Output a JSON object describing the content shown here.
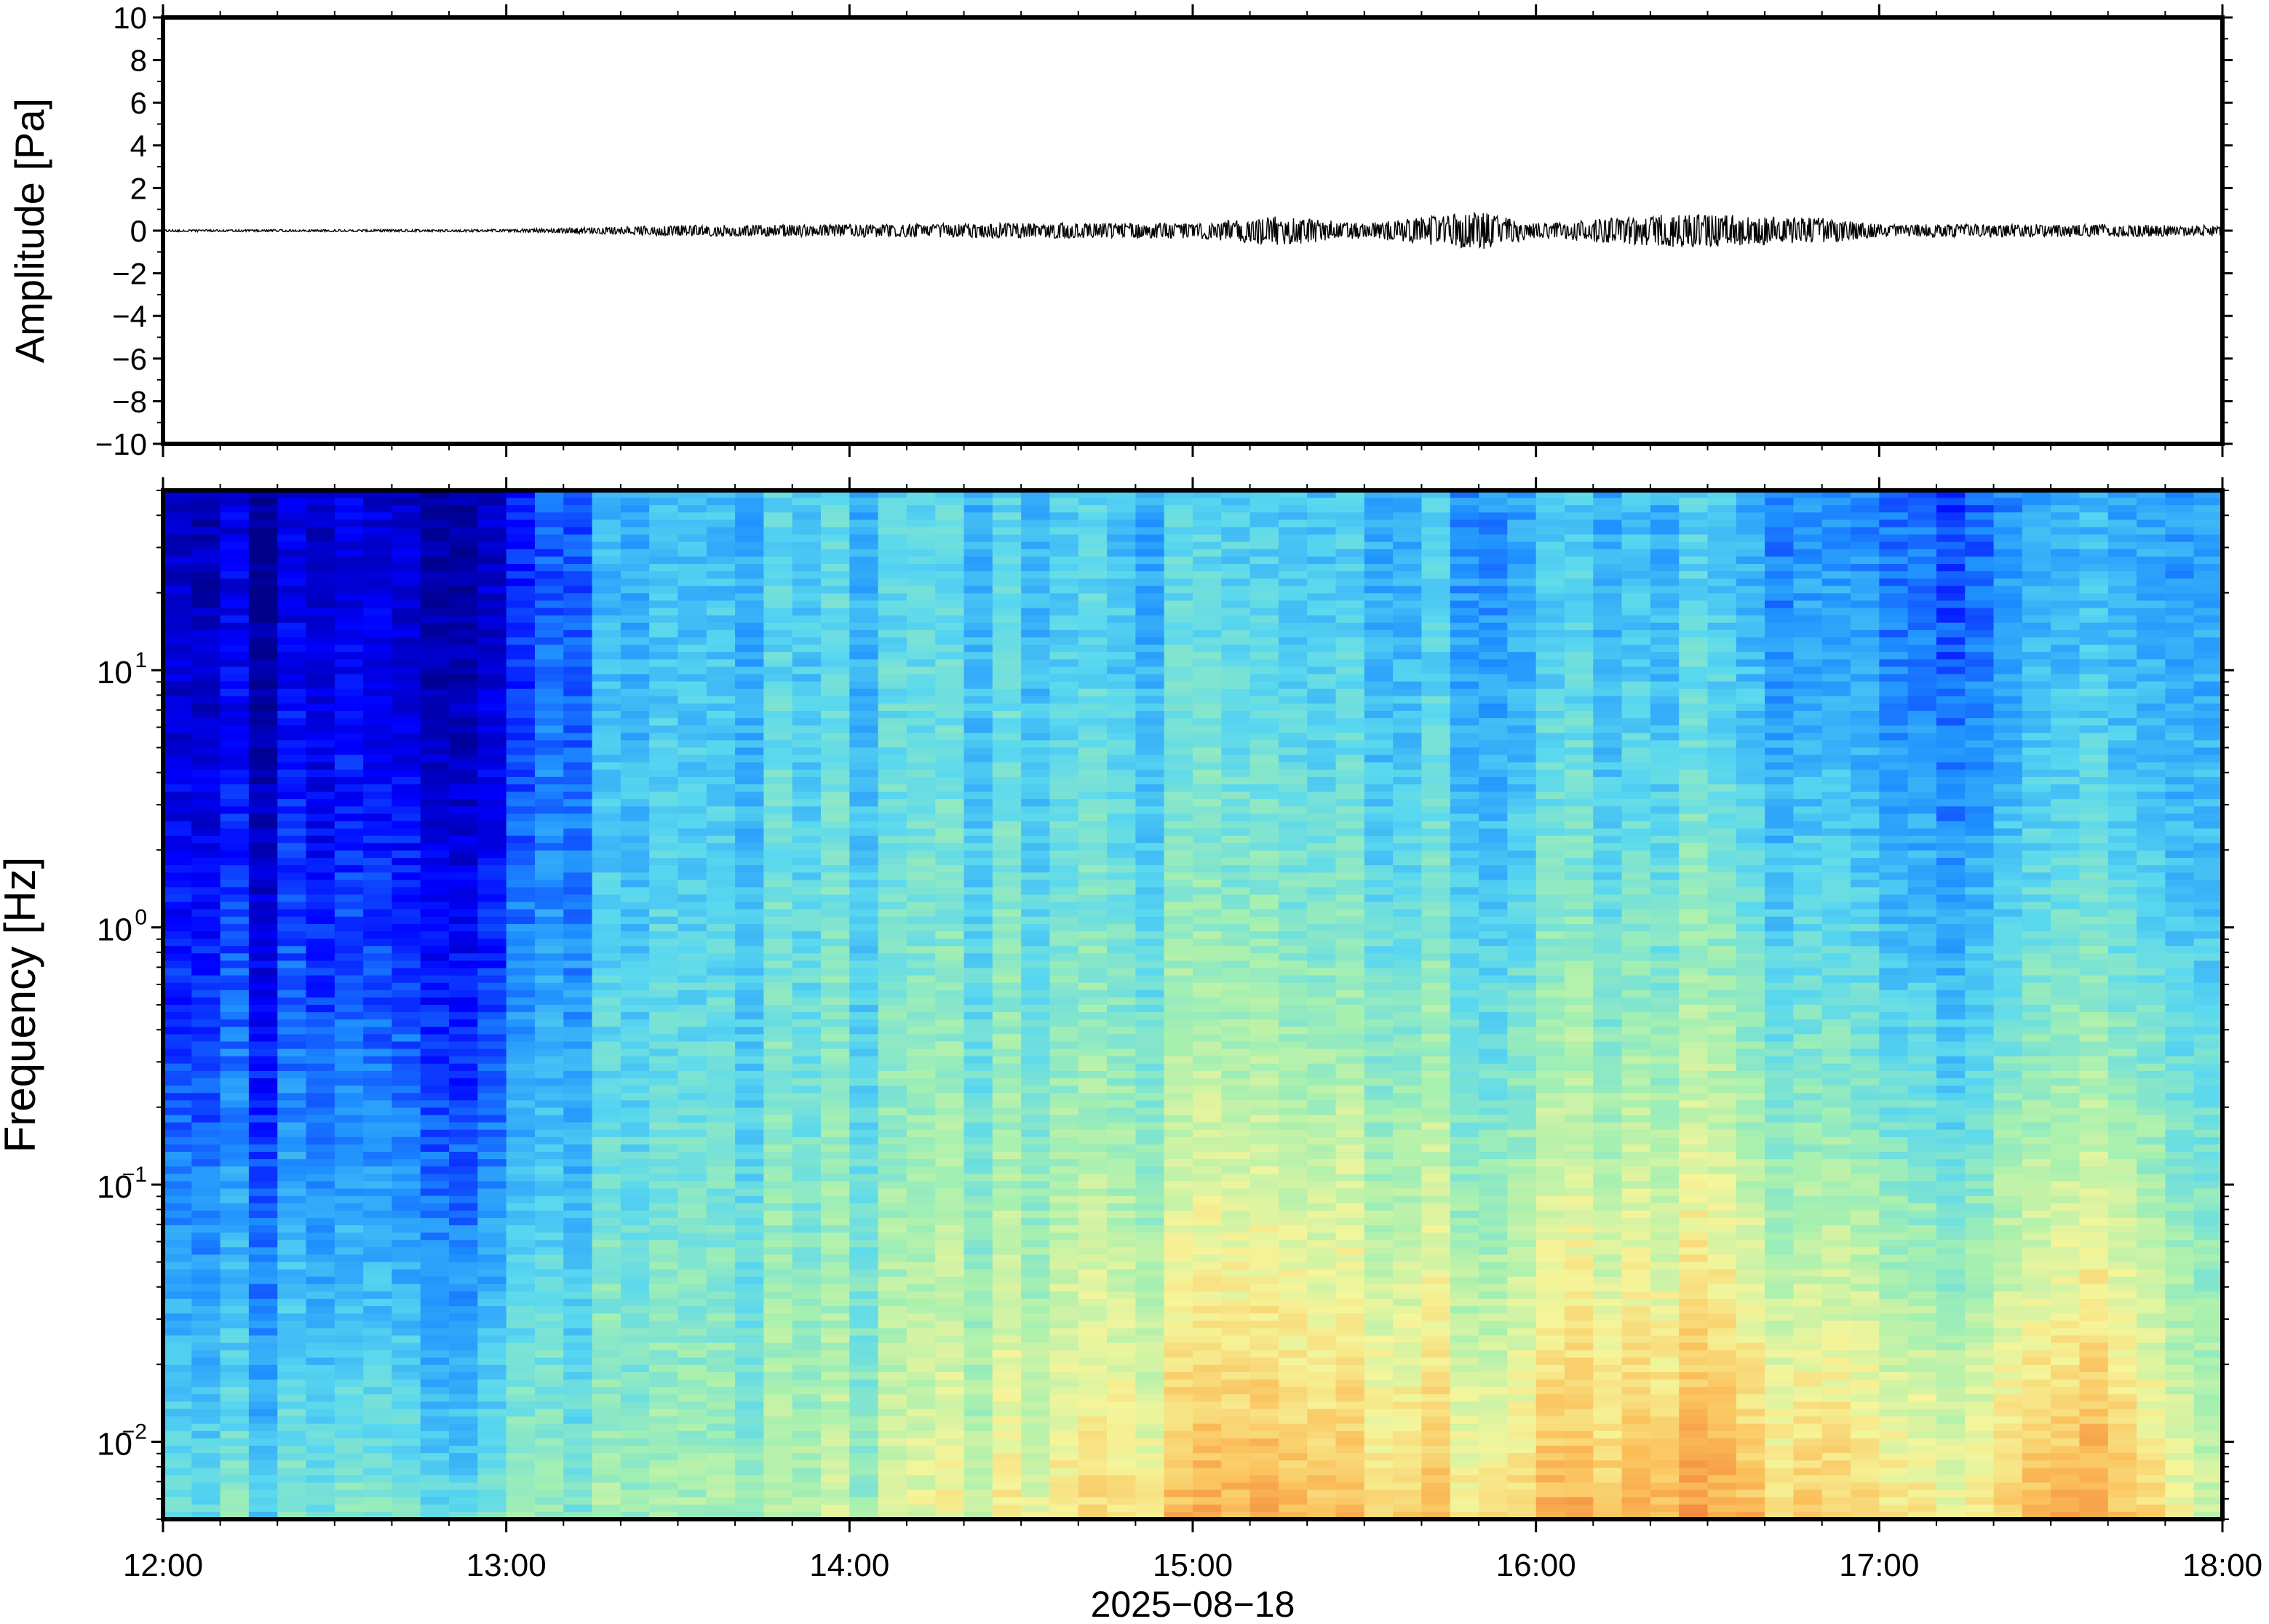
{
  "chart_data": [
    {
      "type": "line",
      "title": "",
      "xlabel": "",
      "ylabel": "Amplitude [Pa]",
      "ylim": [
        -10,
        10
      ],
      "y_ticks": [
        10,
        8,
        6,
        4,
        2,
        0,
        -2,
        -4,
        -6,
        -8,
        -10
      ],
      "y_tick_labels": [
        "10",
        "8",
        "6",
        "4",
        "2",
        "0",
        "−2",
        "−4",
        "−6",
        "−8",
        "−10"
      ],
      "x_range": [
        "12:00",
        "18:00"
      ],
      "grid": false,
      "series": [
        {
          "values_description_hourly_envelope_max_abs_Pa": [
            {
              "x": "12:00",
              "y": 0.05
            },
            {
              "x": "12:30",
              "y": 0.05
            },
            {
              "x": "13:00",
              "y": 0.06
            },
            {
              "x": "13:30",
              "y": 0.25
            },
            {
              "x": "14:00",
              "y": 0.3
            },
            {
              "x": "14:30",
              "y": 0.35
            },
            {
              "x": "15:00",
              "y": 0.35
            },
            {
              "x": "15:15",
              "y": 0.7
            },
            {
              "x": "15:30",
              "y": 0.35
            },
            {
              "x": "15:50",
              "y": 0.9
            },
            {
              "x": "16:00",
              "y": 0.35
            },
            {
              "x": "16:25",
              "y": 0.8
            },
            {
              "x": "16:50",
              "y": 0.6
            },
            {
              "x": "17:00",
              "y": 0.3
            },
            {
              "x": "17:30",
              "y": 0.3
            },
            {
              "x": "18:00",
              "y": 0.25
            }
          ]
        }
      ],
      "line_color": "#000000"
    },
    {
      "type": "heatmap",
      "title": "",
      "xlabel": "2025−08−18",
      "ylabel": "Frequency [Hz]",
      "y_scale": "log",
      "ylim": [
        0.005,
        50
      ],
      "y_ticks": [
        {
          "value": 10,
          "base": "10",
          "exp": "1"
        },
        {
          "value": 1,
          "base": "10",
          "exp": "0"
        },
        {
          "value": 0.1,
          "base": "10",
          "exp": "−1"
        },
        {
          "value": 0.01,
          "base": "10",
          "exp": "−2"
        }
      ],
      "x_ticks": [
        "12:00",
        "13:00",
        "14:00",
        "15:00",
        "16:00",
        "17:00",
        "18:00"
      ],
      "colormap": "jet-like",
      "colormap_stops": [
        "#00008b",
        "#0000ff",
        "#1e90ff",
        "#5ad8ef",
        "#a6f0b0",
        "#f5f59a",
        "#fbbf5a",
        "#f07030"
      ],
      "relative_power_by_time": [
        {
          "x": "12:00",
          "low_freq_level": 0.45,
          "high_freq_level": 0.05
        },
        {
          "x": "13:00",
          "low_freq_level": 0.5,
          "high_freq_level": 0.08
        },
        {
          "x": "13:20",
          "low_freq_level": 0.55,
          "high_freq_level": 0.35
        },
        {
          "x": "14:00",
          "low_freq_level": 0.6,
          "high_freq_level": 0.4
        },
        {
          "x": "15:10",
          "low_freq_level": 0.85,
          "high_freq_level": 0.38
        },
        {
          "x": "15:50",
          "low_freq_level": 0.8,
          "high_freq_level": 0.35
        },
        {
          "x": "16:25",
          "low_freq_level": 0.9,
          "high_freq_level": 0.38
        },
        {
          "x": "17:10",
          "low_freq_level": 0.7,
          "high_freq_level": 0.2
        },
        {
          "x": "17:40",
          "low_freq_level": 0.9,
          "high_freq_level": 0.35
        },
        {
          "x": "18:00",
          "low_freq_level": 0.6,
          "high_freq_level": 0.3
        }
      ],
      "grid": false
    }
  ]
}
